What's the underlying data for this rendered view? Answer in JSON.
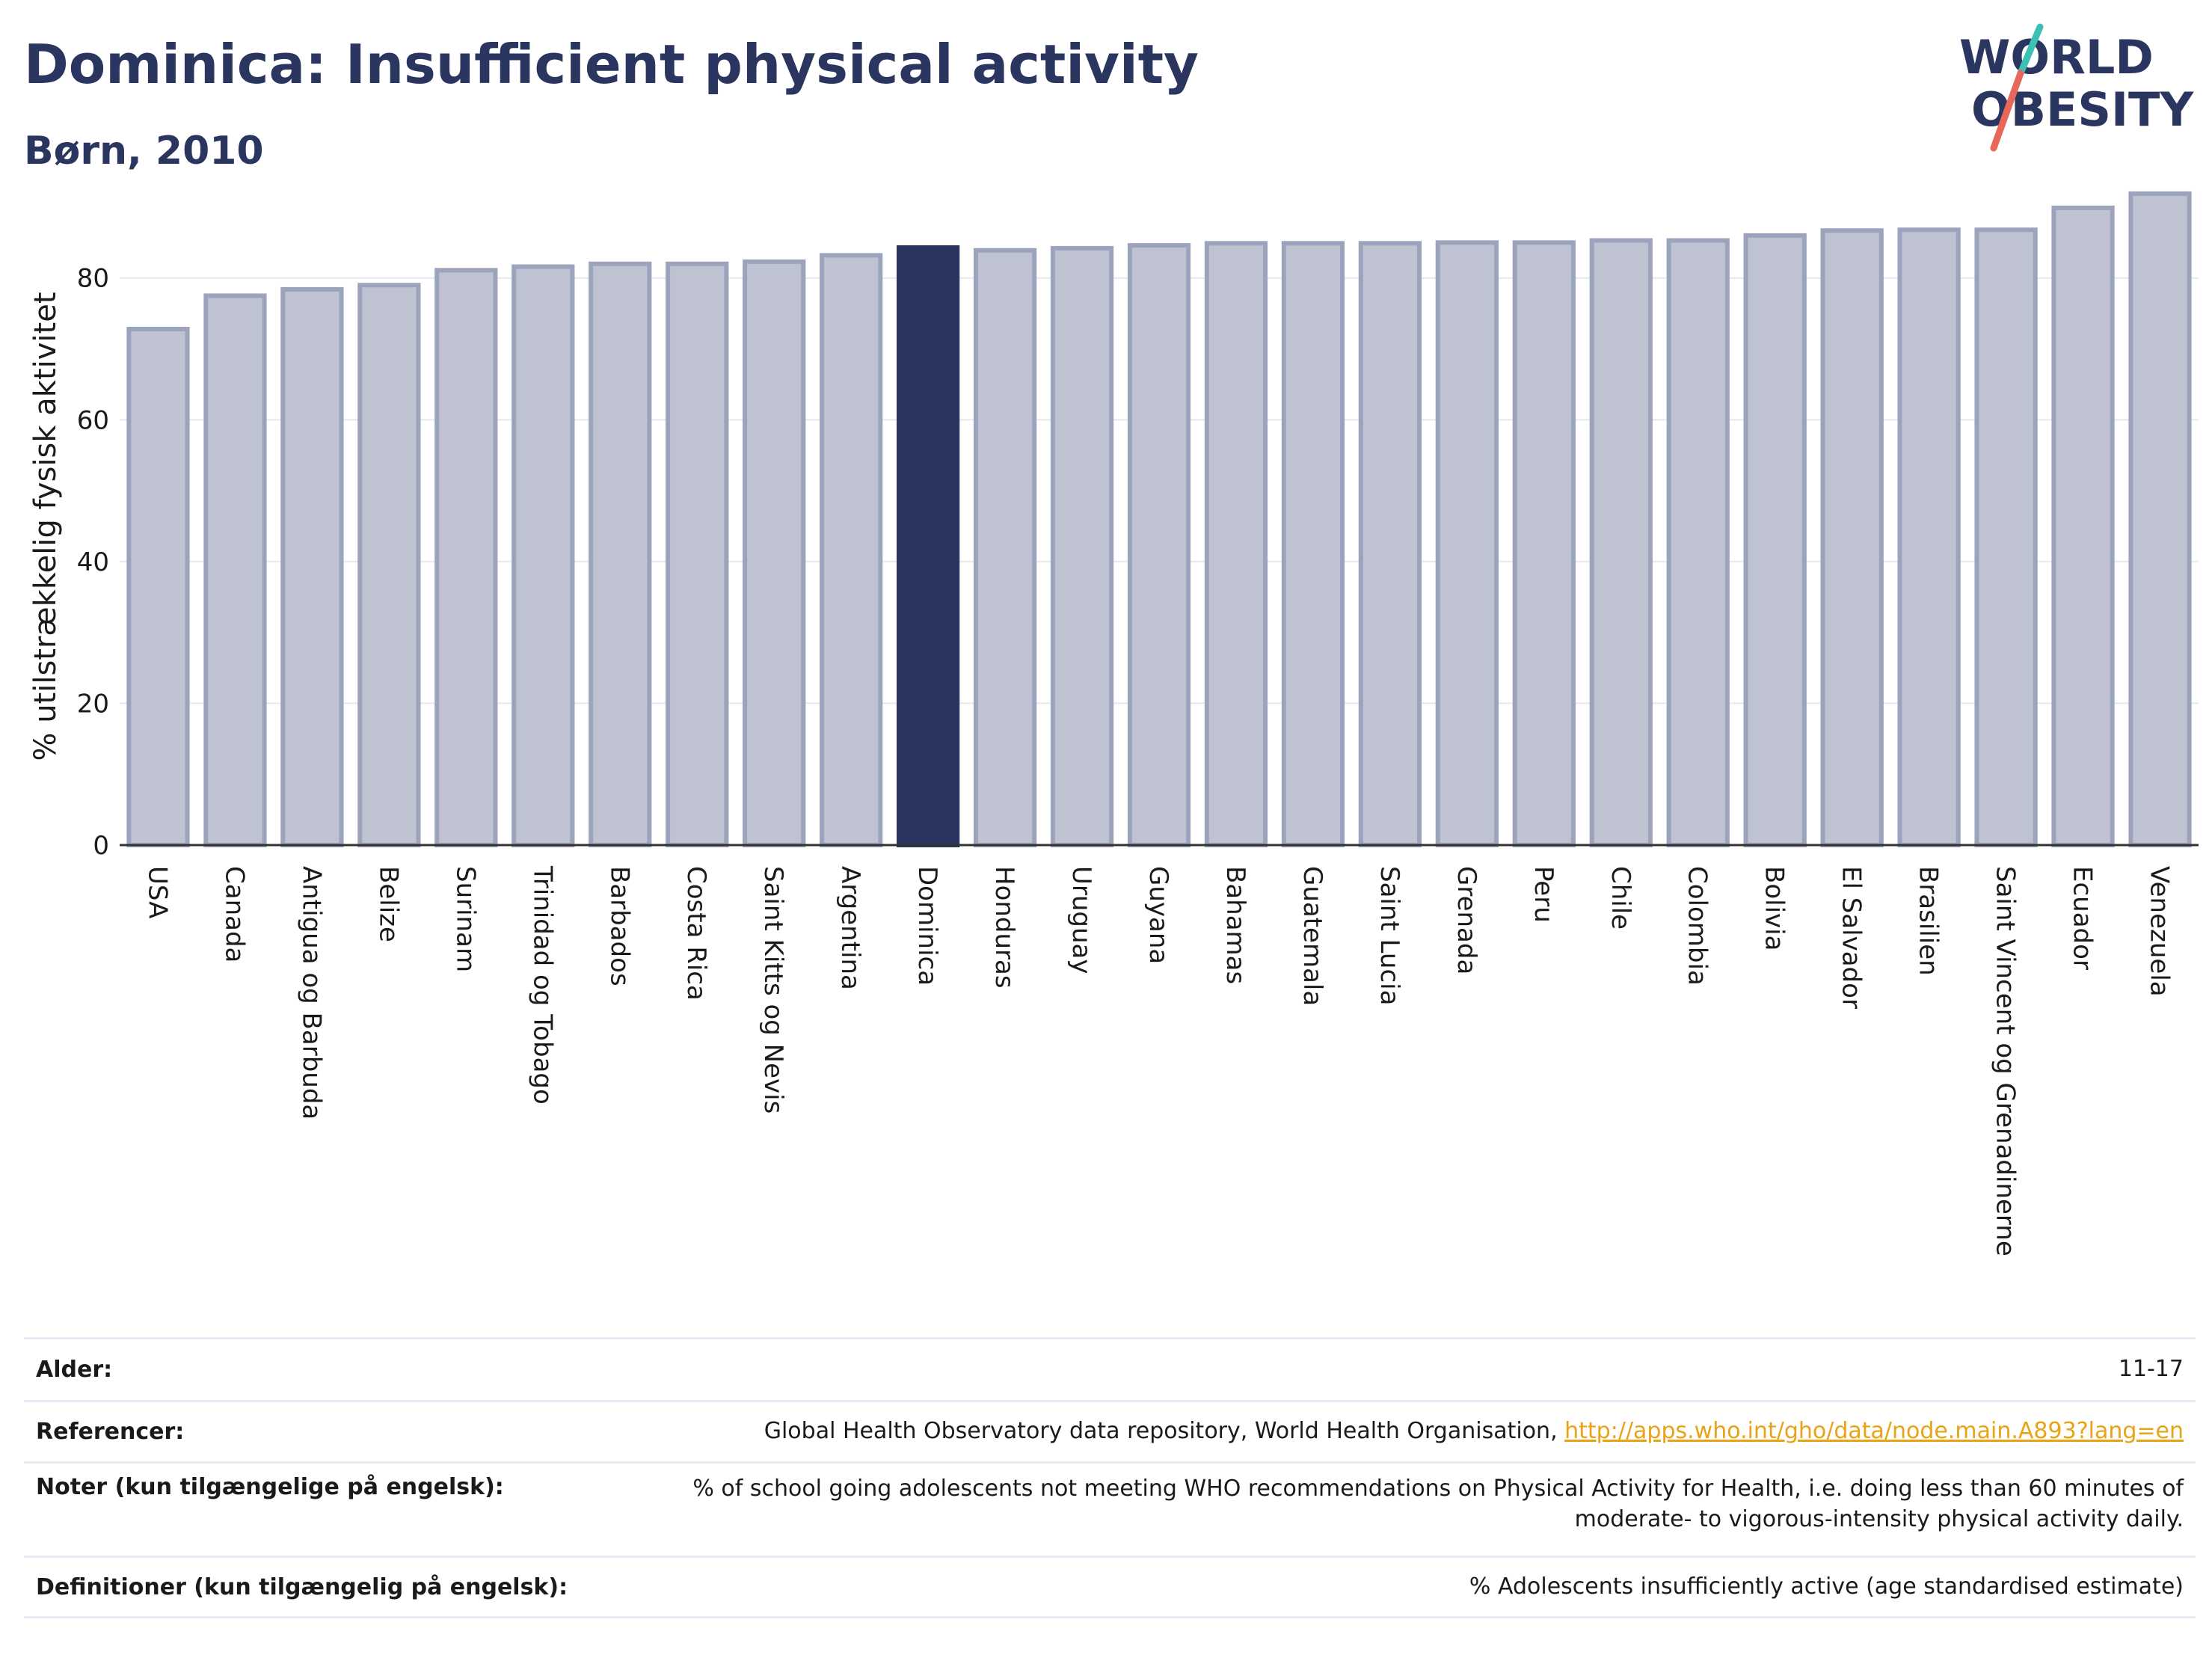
{
  "header": {
    "title": "Dominica: Insufficient physical activity",
    "subtitle": "Børn, 2010"
  },
  "logo": {
    "line1": "WORLD",
    "line2": "OBESITY",
    "colors": {
      "text": "#2b3660",
      "slash_top": "#3cbfb5",
      "slash_bottom": "#e8675a"
    }
  },
  "colors": {
    "bar": "#bfc3d1",
    "bar_stroke": "#9ca3bc",
    "highlight": "#2b3660",
    "grid": "#e6e8ef",
    "axis": "#333333"
  },
  "chart_data": {
    "type": "bar",
    "ylabel": "% utilstrækkelig fysisk aktivitet",
    "xlabel": "",
    "ylim": [
      0,
      92
    ],
    "yticks": [
      0,
      20,
      40,
      60,
      80
    ],
    "grid": true,
    "highlight": "Dominica",
    "categories": [
      "USA",
      "Canada",
      "Antigua og Barbuda",
      "Belize",
      "Surinam",
      "Trinidad og Tobago",
      "Barbados",
      "Costa Rica",
      "Saint Kitts og Nevis",
      "Argentina",
      "Dominica",
      "Honduras",
      "Uruguay",
      "Guyana",
      "Bahamas",
      "Guatemala",
      "Saint Lucia",
      "Grenada",
      "Peru",
      "Chile",
      "Colombia",
      "Bolivia",
      "El Salvador",
      "Brasilien",
      "Saint Vincent og Grenadinerne",
      "Ecuador",
      "Venezuela"
    ],
    "values": [
      72.8,
      77.5,
      78.4,
      79.0,
      81.1,
      81.6,
      82.0,
      82.0,
      82.3,
      83.2,
      84.3,
      83.9,
      84.2,
      84.6,
      84.9,
      84.9,
      84.9,
      85.0,
      85.0,
      85.3,
      85.3,
      86.0,
      86.7,
      86.8,
      86.8,
      89.9,
      91.9
    ]
  },
  "info": {
    "rows": [
      {
        "label": "Alder:",
        "value": "11-17"
      },
      {
        "label": "Referencer:",
        "value": "Global Health Observatory data repository, World Health Organisation, ",
        "link": "http://apps.who.int/gho/data/node.main.A893?lang=en"
      },
      {
        "label": "Noter (kun tilgængelige på engelsk):",
        "value": "% of school going adolescents not meeting WHO recommendations on Physical Activity for Health, i.e. doing less than 60 minutes of moderate- to vigorous-intensity physical activity daily."
      },
      {
        "label": "Definitioner (kun tilgængelig på engelsk):",
        "value": "% Adolescents insufficiently active (age standardised estimate)"
      }
    ]
  }
}
